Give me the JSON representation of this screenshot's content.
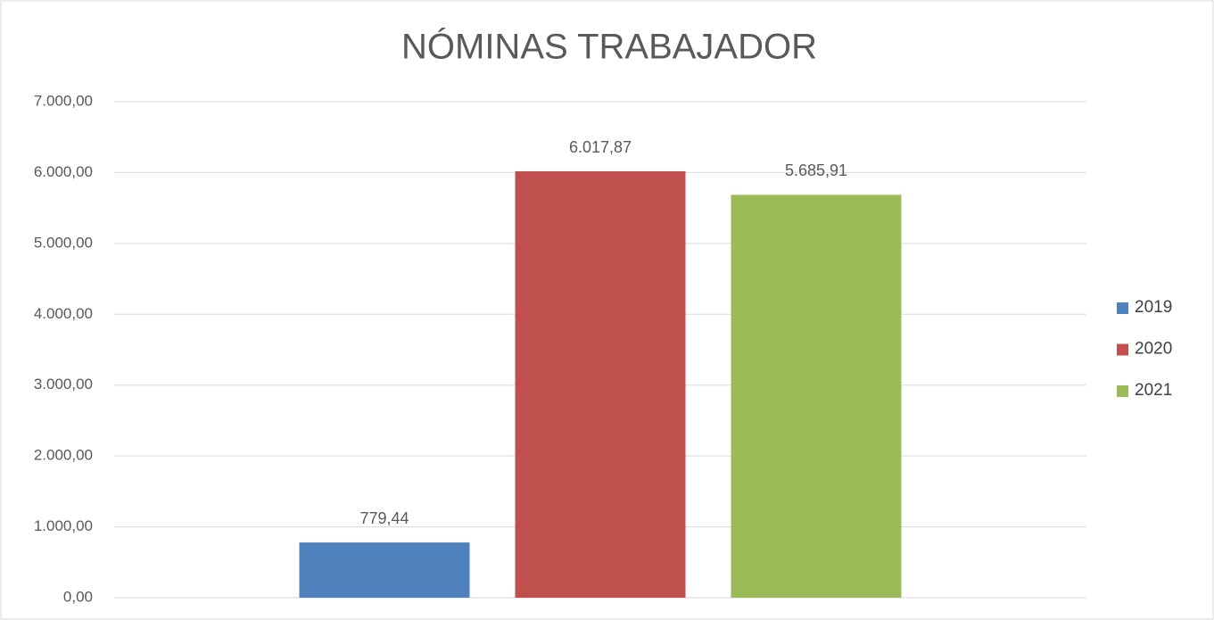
{
  "chart_data": {
    "type": "bar",
    "title": "NÓMINAS TRABAJADOR",
    "categories": [
      null
    ],
    "series": [
      {
        "name": "2019",
        "color": "#4f81bd",
        "values": [
          779.44
        ],
        "value_labels": [
          "779,44"
        ]
      },
      {
        "name": "2020",
        "color": "#c0504d",
        "values": [
          6017.87
        ],
        "value_labels": [
          "6.017,87"
        ]
      },
      {
        "name": "2021",
        "color": "#9bbb59",
        "values": [
          5685.91
        ],
        "value_labels": [
          "5.685,91"
        ]
      }
    ],
    "ylim": [
      0,
      7000
    ],
    "yticks": [
      {
        "value": 0,
        "label": "0,00"
      },
      {
        "value": 1000,
        "label": "1.000,00"
      },
      {
        "value": 2000,
        "label": "2.000,00"
      },
      {
        "value": 3000,
        "label": "3.000,00"
      },
      {
        "value": 4000,
        "label": "4.000,00"
      },
      {
        "value": 5000,
        "label": "5.000,00"
      },
      {
        "value": 6000,
        "label": "6.000,00"
      },
      {
        "value": 7000,
        "label": "7.000,00"
      }
    ],
    "grid": true,
    "legend": "right"
  }
}
